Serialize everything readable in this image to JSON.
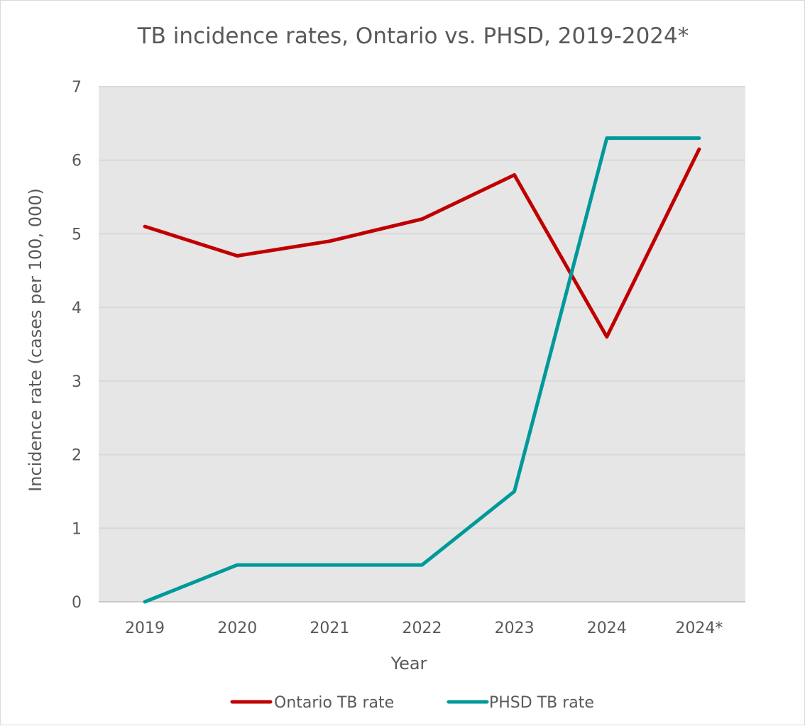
{
  "chart_data": {
    "type": "line",
    "title": "TB incidence rates, Ontario vs. PHSD,  2019-2024*",
    "xlabel": "Year",
    "ylabel": "Incidence rate (cases per 100, 000)",
    "categories": [
      "2019",
      "2020",
      "2021",
      "2022",
      "2023",
      "2024",
      "2024*"
    ],
    "ylim": [
      0,
      7
    ],
    "yticks": [
      0,
      1,
      2,
      3,
      4,
      5,
      6,
      7
    ],
    "grid": true,
    "legend_position": "bottom",
    "plot_background": "#e6e6e6",
    "series": [
      {
        "name": "Ontario TB rate",
        "color": "#c00000",
        "values": [
          5.1,
          4.7,
          4.9,
          5.2,
          5.8,
          3.6,
          6.15
        ]
      },
      {
        "name": "PHSD TB rate",
        "color": "#009999",
        "values": [
          0.0,
          0.5,
          0.5,
          0.5,
          1.5,
          6.3,
          6.3
        ]
      }
    ]
  }
}
